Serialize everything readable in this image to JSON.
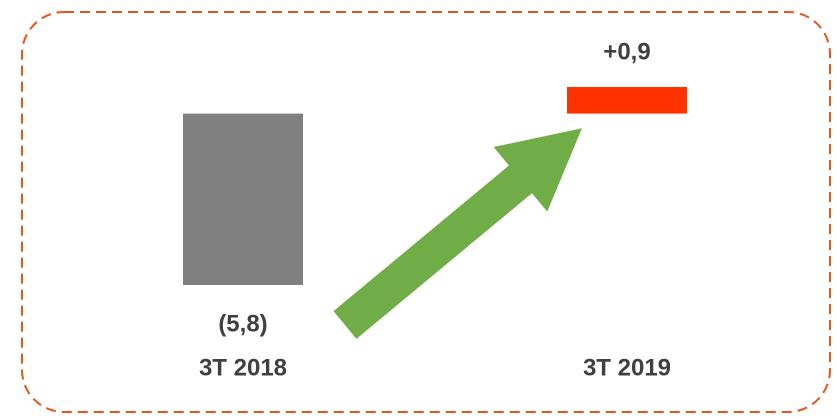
{
  "chart_data": {
    "type": "bar",
    "categories": [
      "3T 2018",
      "3T 2019"
    ],
    "values": [
      -5.8,
      0.9
    ],
    "value_labels": [
      "(5,8)",
      "+0,9"
    ],
    "colors": [
      "#808080",
      "#ff3300"
    ]
  }
}
